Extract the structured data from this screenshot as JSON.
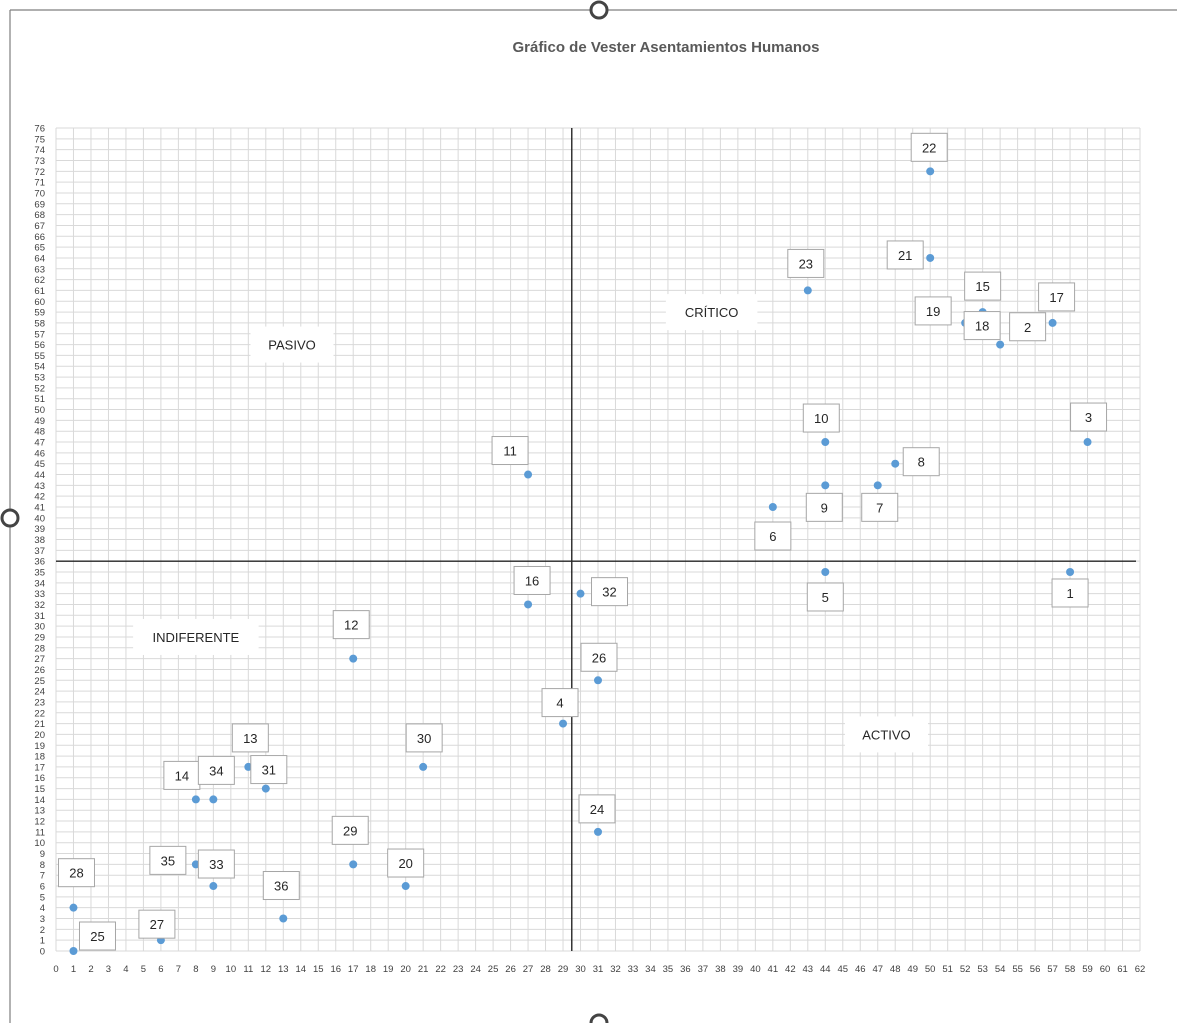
{
  "chart_data": {
    "type": "scatter",
    "title": "Gráfico de Vester Asentamientos Humanos",
    "xlabel": "",
    "ylabel": "",
    "xlim": [
      0,
      62
    ],
    "ylim": [
      0,
      76
    ],
    "x_ticks_step": 1,
    "y_ticks_step": 1,
    "grid": true,
    "quadrant_lines": {
      "x": 29.5,
      "y": 36
    },
    "points": [
      {
        "label": "1",
        "x": 58,
        "y": 35
      },
      {
        "label": "2",
        "x": 55,
        "y": 57
      },
      {
        "label": "3",
        "x": 59,
        "y": 47
      },
      {
        "label": "4",
        "x": 29,
        "y": 21
      },
      {
        "label": "5",
        "x": 44,
        "y": 35
      },
      {
        "label": "6",
        "x": 41,
        "y": 41
      },
      {
        "label": "7",
        "x": 47,
        "y": 43
      },
      {
        "label": "8",
        "x": 48,
        "y": 45
      },
      {
        "label": "9",
        "x": 44,
        "y": 43
      },
      {
        "label": "10",
        "x": 44,
        "y": 47
      },
      {
        "label": "11",
        "x": 27,
        "y": 44
      },
      {
        "label": "12",
        "x": 17,
        "y": 27
      },
      {
        "label": "13",
        "x": 11,
        "y": 17
      },
      {
        "label": "14",
        "x": 8,
        "y": 14
      },
      {
        "label": "15",
        "x": 53,
        "y": 59
      },
      {
        "label": "16",
        "x": 27,
        "y": 32
      },
      {
        "label": "17",
        "x": 57,
        "y": 58
      },
      {
        "label": "18",
        "x": 54,
        "y": 56
      },
      {
        "label": "19",
        "x": 52,
        "y": 58
      },
      {
        "label": "20",
        "x": 20,
        "y": 6
      },
      {
        "label": "21",
        "x": 50,
        "y": 64
      },
      {
        "label": "22",
        "x": 50,
        "y": 72
      },
      {
        "label": "23",
        "x": 43,
        "y": 61
      },
      {
        "label": "24",
        "x": 31,
        "y": 11
      },
      {
        "label": "25",
        "x": 1,
        "y": 0
      },
      {
        "label": "26",
        "x": 31,
        "y": 25
      },
      {
        "label": "27",
        "x": 6,
        "y": 1
      },
      {
        "label": "28",
        "x": 1,
        "y": 4
      },
      {
        "label": "29",
        "x": 17,
        "y": 8
      },
      {
        "label": "30",
        "x": 21,
        "y": 17
      },
      {
        "label": "31",
        "x": 12,
        "y": 15
      },
      {
        "label": "32",
        "x": 30,
        "y": 33
      },
      {
        "label": "33",
        "x": 9,
        "y": 6
      },
      {
        "label": "34",
        "x": 9,
        "y": 14
      },
      {
        "label": "35",
        "x": 8,
        "y": 8
      },
      {
        "label": "36",
        "x": 13,
        "y": 3
      }
    ],
    "regions": [
      {
        "name": "PASIVO",
        "x": 13.5,
        "y": 56
      },
      {
        "name": "CRÍTICO",
        "x": 37.5,
        "y": 59
      },
      {
        "name": "INDIFERENTE",
        "x": 8,
        "y": 29
      },
      {
        "name": "ACTIVO",
        "x": 47.5,
        "y": 20
      }
    ],
    "colors": {
      "point": "#5b9bd5",
      "grid": "#d9d9d9",
      "quadrant": "#262626",
      "title": "#595959"
    }
  }
}
